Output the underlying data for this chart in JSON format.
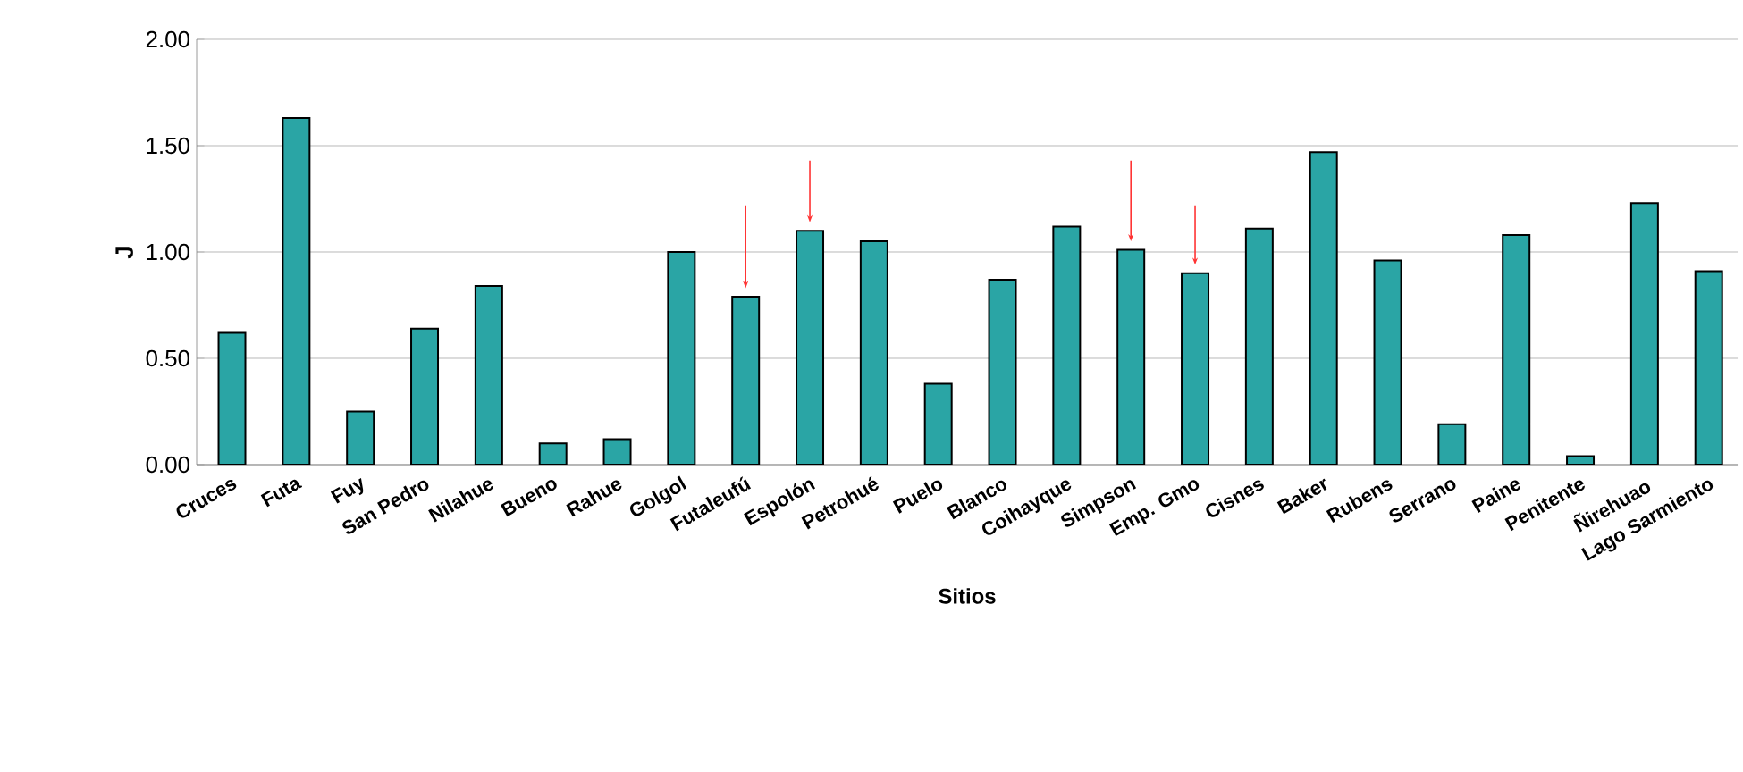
{
  "chart_data": {
    "type": "bar",
    "xlabel": "Sitios",
    "ylabel": "J",
    "categories": [
      "Cruces",
      "Futa",
      "Fuy",
      "San Pedro",
      "Nilahue",
      "Bueno",
      "Rahue",
      "Golgol",
      "Futaleufú",
      "Espolón",
      "Petrohué",
      "Puelo",
      "Blanco",
      "Coihayque",
      "Simpson",
      "Emp. Gmo",
      "Cisnes",
      "Baker",
      "Rubens",
      "Serrano",
      "Paine",
      "Penitente",
      "Ñirehuao",
      "Lago Sarmiento"
    ],
    "values": [
      0.62,
      1.63,
      0.25,
      0.64,
      0.84,
      0.1,
      0.12,
      1.0,
      0.79,
      1.1,
      1.05,
      0.38,
      0.87,
      1.12,
      1.01,
      0.9,
      1.11,
      1.47,
      0.96,
      0.19,
      1.08,
      0.04,
      1.23,
      0.91
    ],
    "color": "#2aa5a5",
    "ylim": [
      0,
      2
    ],
    "yticks": [
      {
        "value": 0,
        "label": "0.00"
      },
      {
        "value": 0.5,
        "label": "0.50"
      },
      {
        "value": 1,
        "label": "1.00"
      },
      {
        "value": 1.5,
        "label": "1.50"
      },
      {
        "value": 2,
        "label": "2.00"
      }
    ],
    "grid": "y"
  }
}
